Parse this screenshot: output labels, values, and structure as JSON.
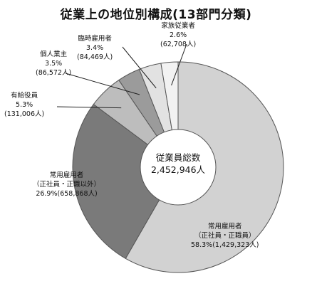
{
  "chart_data": {
    "type": "pie",
    "title": "従業上の地位別構成(13部門分類)",
    "center_label": {
      "title": "従業員総数",
      "value": "2,452,946人"
    },
    "start": "top",
    "direction": "clockwise",
    "slices": [
      {
        "name_lines": [
          "常用雇用者",
          "（正社員・正職員）"
        ],
        "percent": 58.3,
        "percent_text": "58.3%",
        "count_text": "(1,429,323人)",
        "color": "#d2d2d2"
      },
      {
        "name_lines": [
          "常用雇用者",
          "（正社員・正職以外）"
        ],
        "percent": 26.9,
        "percent_text": "26.9%",
        "count_text": "(658,868人)",
        "color": "#7a7a7a"
      },
      {
        "name_lines": [
          "有給役員"
        ],
        "percent": 5.3,
        "percent_text": "5.3%",
        "count_text": "(131,006人)",
        "color": "#bdbdbd"
      },
      {
        "name_lines": [
          "個人業主"
        ],
        "percent": 3.5,
        "percent_text": "3.5%",
        "count_text": "(86,572人)",
        "color": "#9b9b9b"
      },
      {
        "name_lines": [
          "臨時雇用者"
        ],
        "percent": 3.4,
        "percent_text": "3.4%",
        "count_text": "(84,469人)",
        "color": "#e2e2e2"
      },
      {
        "name_lines": [
          "家族従業者"
        ],
        "percent": 2.6,
        "percent_text": "2.6%",
        "count_text": "(62,708人)",
        "color": "#f2f2f2"
      }
    ]
  }
}
